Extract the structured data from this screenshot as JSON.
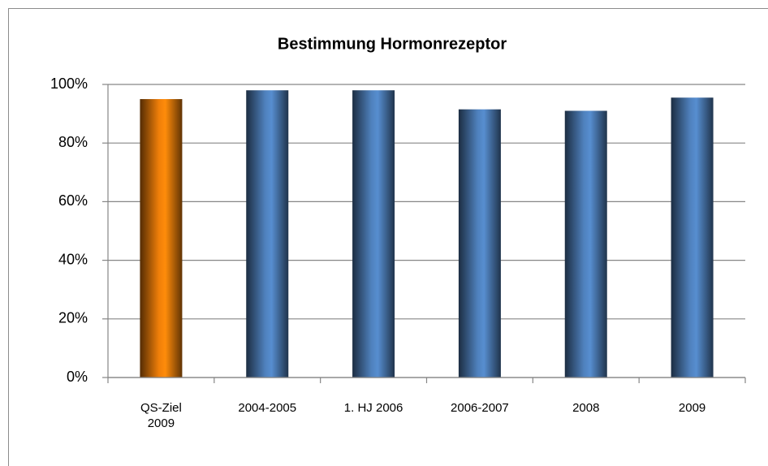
{
  "chart_data": {
    "type": "bar",
    "title": "Bestimmung Hormonrezeptor",
    "categories": [
      "QS-Ziel 2009",
      "2004-2005",
      "1. HJ 2006",
      "2006-2007",
      "2008",
      "2009"
    ],
    "values": [
      95,
      98,
      98,
      91.5,
      91,
      95.5
    ],
    "colors": [
      "#f07f09",
      "#4f81bd",
      "#4f81bd",
      "#4f81bd",
      "#4f81bd",
      "#4f81bd"
    ],
    "ylim": [
      0,
      100
    ],
    "yticks": [
      {
        "value": 0,
        "label": "0%"
      },
      {
        "value": 20,
        "label": "20%"
      },
      {
        "value": 40,
        "label": "40%"
      },
      {
        "value": 60,
        "label": "60%"
      },
      {
        "value": 80,
        "label": "80%"
      },
      {
        "value": 100,
        "label": "100%"
      }
    ],
    "grid": true
  }
}
